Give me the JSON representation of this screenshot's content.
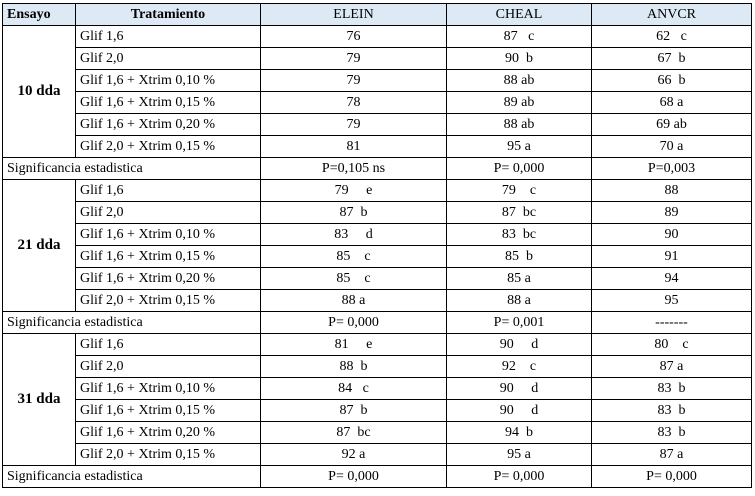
{
  "headers": [
    "Ensayo",
    "Tratamiento",
    "ELEIN",
    "CHEAL",
    "ANVCR"
  ],
  "blocks": [
    {
      "ensayo": "10 dda",
      "rows": [
        {
          "trat": "Glif 1,6",
          "elein": "76",
          "cheal": "87   c",
          "anvcr": "62   c"
        },
        {
          "trat": "Glif 2,0",
          "elein": "79",
          "cheal": "90  b",
          "anvcr": "67  b"
        },
        {
          "trat": "Glif 1,6 + Xtrim 0,10 %",
          "elein": "79",
          "cheal": "88 ab",
          "anvcr": "66  b"
        },
        {
          "trat": "Glif 1,6 + Xtrim 0,15 %",
          "elein": "78",
          "cheal": "89 ab",
          "anvcr": "68 a"
        },
        {
          "trat": "Glif 1,6 + Xtrim 0,20 %",
          "elein": "79",
          "cheal": "88 ab",
          "anvcr": "69 ab"
        },
        {
          "trat": "Glif 2,0 + Xtrim 0,15 %",
          "elein": "81",
          "cheal": "95 a",
          "anvcr": "70 a"
        }
      ],
      "sig": {
        "label": "Significancia estadistica",
        "elein": "P=0,105 ns",
        "cheal": "P= 0,000",
        "anvcr": "P=0,003"
      }
    },
    {
      "ensayo": "21 dda",
      "rows": [
        {
          "trat": "Glif 1,6",
          "elein": "79     e",
          "cheal": "79    c",
          "anvcr": "88"
        },
        {
          "trat": "Glif 2,0",
          "elein": "87  b",
          "cheal": "87  bc",
          "anvcr": "89"
        },
        {
          "trat": "Glif 1,6 + Xtrim 0,10 %",
          "elein": "83     d",
          "cheal": "83  bc",
          "anvcr": "90"
        },
        {
          "trat": "Glif 1,6 + Xtrim 0,15 %",
          "elein": "85    c",
          "cheal": "85  b",
          "anvcr": "91"
        },
        {
          "trat": "Glif 1,6 + Xtrim 0,20 %",
          "elein": "85    c",
          "cheal": "85 a",
          "anvcr": "94"
        },
        {
          "trat": "Glif 2,0 + Xtrim 0,15 %",
          "elein": "88 a",
          "cheal": "88 a",
          "anvcr": "95"
        }
      ],
      "sig": {
        "label": "Significancia estadistica",
        "elein": "P= 0,000",
        "cheal": "P= 0,001",
        "anvcr": "-------"
      }
    },
    {
      "ensayo": "31 dda",
      "rows": [
        {
          "trat": "Glif 1,6",
          "elein": "81     e",
          "cheal": "90     d",
          "anvcr": "80    c"
        },
        {
          "trat": "Glif 2,0",
          "elein": "88  b",
          "cheal": "92    c",
          "anvcr": "87 a"
        },
        {
          "trat": "Glif 1,6 + Xtrim 0,10 %",
          "elein": "84   c",
          "cheal": "90     d",
          "anvcr": "83  b"
        },
        {
          "trat": "Glif 1,6 + Xtrim 0,15 %",
          "elein": "87  b",
          "cheal": "90     d",
          "anvcr": "83  b"
        },
        {
          "trat": "Glif 1,6 + Xtrim 0,20 %",
          "elein": "87  bc",
          "cheal": "94  b",
          "anvcr": "83  b"
        },
        {
          "trat": "Glif 2,0 + Xtrim 0,15 %",
          "elein": "92 a",
          "cheal": "95 a",
          "anvcr": "87 a"
        }
      ],
      "sig": {
        "label": "Significancia estadistica",
        "elein": "P= 0,000",
        "cheal": "P= 0,000",
        "anvcr": "P= 0,000"
      }
    }
  ]
}
